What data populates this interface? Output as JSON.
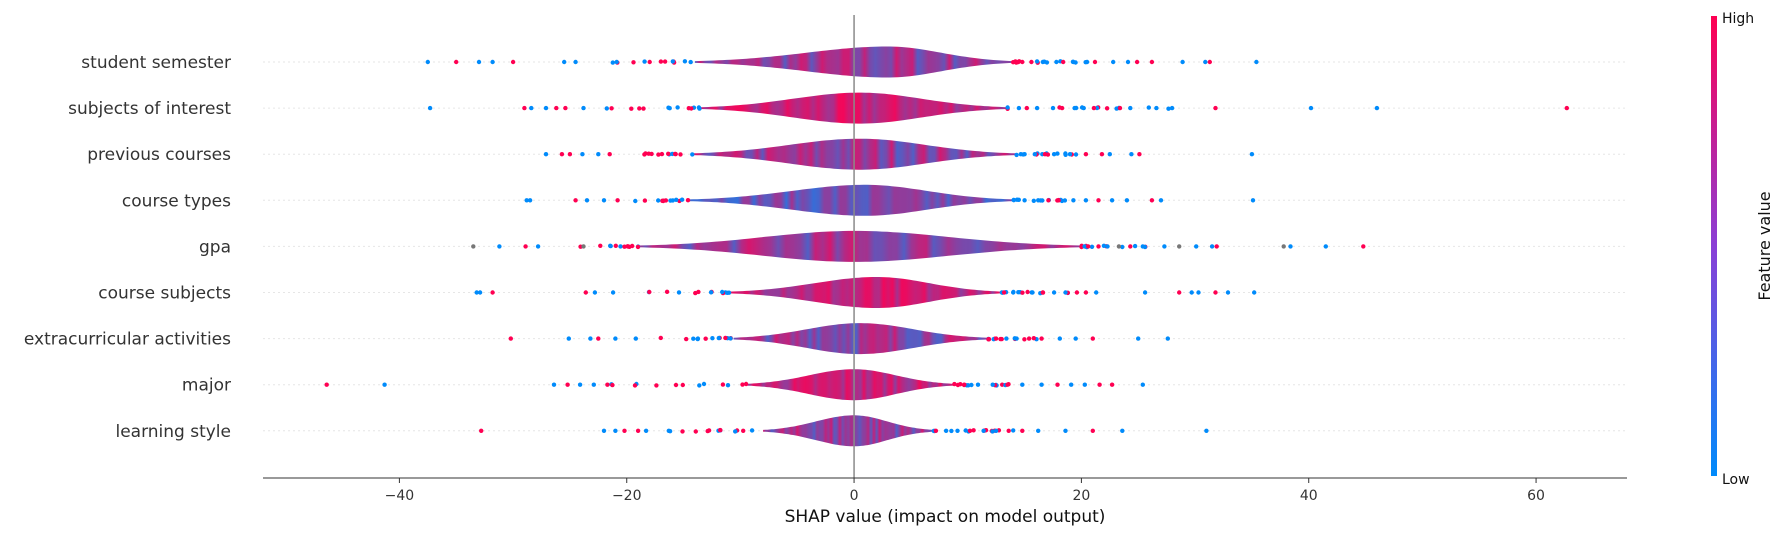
{
  "chart_data": {
    "type": "violin",
    "title": "",
    "xlabel": "SHAP value (impact on model output)",
    "ylabel": "",
    "xlim": [
      -52,
      68
    ],
    "xticks": [
      -40,
      -20,
      0,
      20,
      40,
      60
    ],
    "grid": false,
    "colorbar": {
      "title": "Feature value",
      "high_label": "High",
      "low_label": "Low",
      "low_color": "#008bfb",
      "high_color": "#ff0052"
    },
    "features": [
      {
        "name": "student semester",
        "min": -37.5,
        "max": 35.4,
        "core_min": -14,
        "core_max": 14,
        "peak": 3,
        "dominant": "mixed",
        "outliers": [
          -37.5,
          -35,
          -33,
          -31.8,
          -30,
          -25.5,
          -24.5,
          14.8,
          15.6,
          16.6,
          17.8,
          18.4,
          19.3,
          20.5,
          21.2,
          22.8,
          24.1,
          24.9,
          26.2,
          28.9,
          30.9,
          31.3,
          35.4
        ]
      },
      {
        "name": "subjects of interest",
        "min": -37.3,
        "max": 62.7,
        "core_min": -13.5,
        "core_max": 13.5,
        "peak": 0.5,
        "dominant": "high",
        "outliers": [
          -37.3,
          -29,
          -28.4,
          -27.1,
          -26.2,
          -25.4,
          -23.8,
          14.5,
          15.2,
          16.1,
          17.5,
          18.3,
          19.4,
          20.2,
          21.1,
          23.4,
          24.3,
          26.6,
          31.8,
          40.2,
          46,
          62.7
        ]
      },
      {
        "name": "previous courses",
        "min": -27.1,
        "max": 35,
        "core_min": -14.2,
        "core_max": 14.2,
        "peak": 0.5,
        "dominant": "mixed",
        "outliers": [
          -27.1,
          -25.7,
          -25,
          -23.9,
          -22.5,
          -21.5,
          15,
          15.9,
          16.8,
          17.6,
          19,
          20.4,
          21.8,
          22.5,
          24.4,
          25.1,
          35
        ]
      },
      {
        "name": "course types",
        "min": -28.8,
        "max": 35.1,
        "core_min": -14.5,
        "core_max": 14,
        "peak": 1,
        "dominant": "low",
        "outliers": [
          -28.8,
          -28.5,
          -24.5,
          -23.5,
          -22,
          -20.8,
          15,
          16.2,
          17.1,
          18,
          19.3,
          20.4,
          21.5,
          22.7,
          24,
          26.2,
          27,
          35.1
        ]
      },
      {
        "name": "gpa",
        "min": -33.5,
        "max": 45,
        "core_min": -19,
        "core_max": 20,
        "peak": 0,
        "dominant": "mixed",
        "outliers": [
          -33.5,
          -31.2,
          -28.9,
          -27.8,
          -23.8,
          20.6,
          21.5,
          22.3,
          23.3,
          24.3,
          25.4,
          27.3,
          28.6,
          30.1,
          31.5,
          31.9,
          37.8,
          38.4,
          41.5,
          44.8
        ]
      },
      {
        "name": "course subjects",
        "min": -33.2,
        "max": 35.2,
        "core_min": -11,
        "core_max": 13,
        "peak": 2,
        "dominant": "high",
        "outliers": [
          -33.2,
          -32.9,
          -31.8,
          -23.6,
          -22.8,
          -21.2,
          13.2,
          14,
          15.7,
          16.6,
          17.6,
          18.6,
          19.6,
          20.4,
          21.3,
          25.6,
          28.6,
          29.7,
          30.3,
          31.8,
          32.9,
          35.2
        ]
      },
      {
        "name": "extracurricular activities",
        "min": -30.2,
        "max": 27.8,
        "core_min": -10.6,
        "core_max": 11.8,
        "peak": 0.5,
        "dominant": "mixed",
        "outliers": [
          -30.2,
          -25.1,
          -23.2,
          -22.5,
          -21,
          -19.2,
          12.5,
          13.4,
          14.3,
          15.4,
          16.5,
          18.1,
          19.5,
          21,
          25,
          27.6
        ]
      },
      {
        "name": "major",
        "min": -46.4,
        "max": 25.4,
        "core_min": -9.5,
        "core_max": 8.8,
        "peak": 0,
        "dominant": "high",
        "outliers": [
          -46.4,
          -41.3,
          -26.4,
          -25.2,
          -24.1,
          -22.9,
          -21.7,
          9.7,
          10.9,
          12.2,
          13.5,
          14.8,
          16.5,
          17.9,
          19.1,
          20.3,
          21.6,
          22.7,
          25.4
        ]
      },
      {
        "name": "learning style",
        "min": -32.8,
        "max": 31,
        "core_min": -8,
        "core_max": 7,
        "peak": 0,
        "dominant": "mixed",
        "outliers": [
          -32.8,
          -22,
          -21,
          -20.2,
          -19,
          -18.3,
          -16.3,
          7.2,
          8.1,
          9.1,
          10.2,
          11.4,
          12.5,
          13.6,
          14.8,
          16.2,
          18.6,
          21,
          23.6,
          31
        ]
      }
    ]
  }
}
